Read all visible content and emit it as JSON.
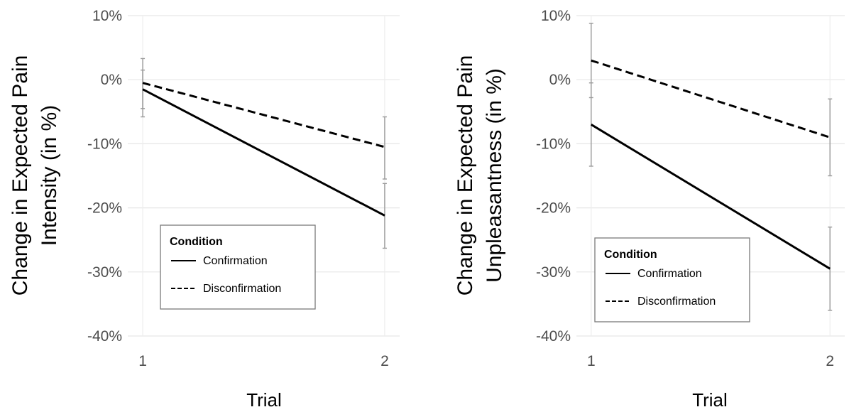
{
  "chart_data": [
    {
      "type": "line",
      "title": "",
      "xlabel": "Trial",
      "ylabel": "Change in Expected Pain Intensity (in %)",
      "ylabel_lines": [
        "Change in Expected Pain",
        "Intensity (in %)"
      ],
      "x": [
        1,
        2
      ],
      "x_tick_labels": [
        "1",
        "2"
      ],
      "ylim": [
        -40,
        10
      ],
      "y_ticks": [
        10,
        0,
        -10,
        -20,
        -30,
        -40
      ],
      "y_tick_labels": [
        "10%",
        "0%",
        "-10%",
        "-20%",
        "-30%",
        "-40%"
      ],
      "grid": true,
      "legend": {
        "title": "Condition",
        "position": "bottom-left-inside"
      },
      "series": [
        {
          "name": "Confirmation",
          "line_style": "solid",
          "values": [
            -1.5,
            -21.2
          ],
          "error_low": [
            -4.5,
            -26.3
          ],
          "error_high": [
            1.5,
            -16.2
          ]
        },
        {
          "name": "Disconfirmation",
          "line_style": "dashed",
          "values": [
            -0.5,
            -10.5
          ],
          "error_low": [
            -5.8,
            -15.5
          ],
          "error_high": [
            3.3,
            -5.8
          ]
        }
      ]
    },
    {
      "type": "line",
      "title": "",
      "xlabel": "Trial",
      "ylabel": "Change in Expected Pain Unpleasantness (in %)",
      "ylabel_lines": [
        "Change in Expected Pain",
        "Unpleasantness (in %)"
      ],
      "x": [
        1,
        2
      ],
      "x_tick_labels": [
        "1",
        "2"
      ],
      "ylim": [
        -40,
        10
      ],
      "y_ticks": [
        10,
        0,
        -10,
        -20,
        -30,
        -40
      ],
      "y_tick_labels": [
        "10%",
        "0%",
        "-10%",
        "-20%",
        "-30%",
        "-40%"
      ],
      "grid": true,
      "legend": {
        "title": "Condition",
        "position": "bottom-right-inside"
      },
      "series": [
        {
          "name": "Confirmation",
          "line_style": "solid",
          "values": [
            -7.0,
            -29.5
          ],
          "error_low": [
            -13.5,
            -36.0
          ],
          "error_high": [
            -0.5,
            -23.0
          ]
        },
        {
          "name": "Disconfirmation",
          "line_style": "dashed",
          "values": [
            3.0,
            -9.0
          ],
          "error_low": [
            -2.8,
            -15.0
          ],
          "error_high": [
            8.8,
            -3.0
          ]
        }
      ]
    }
  ]
}
